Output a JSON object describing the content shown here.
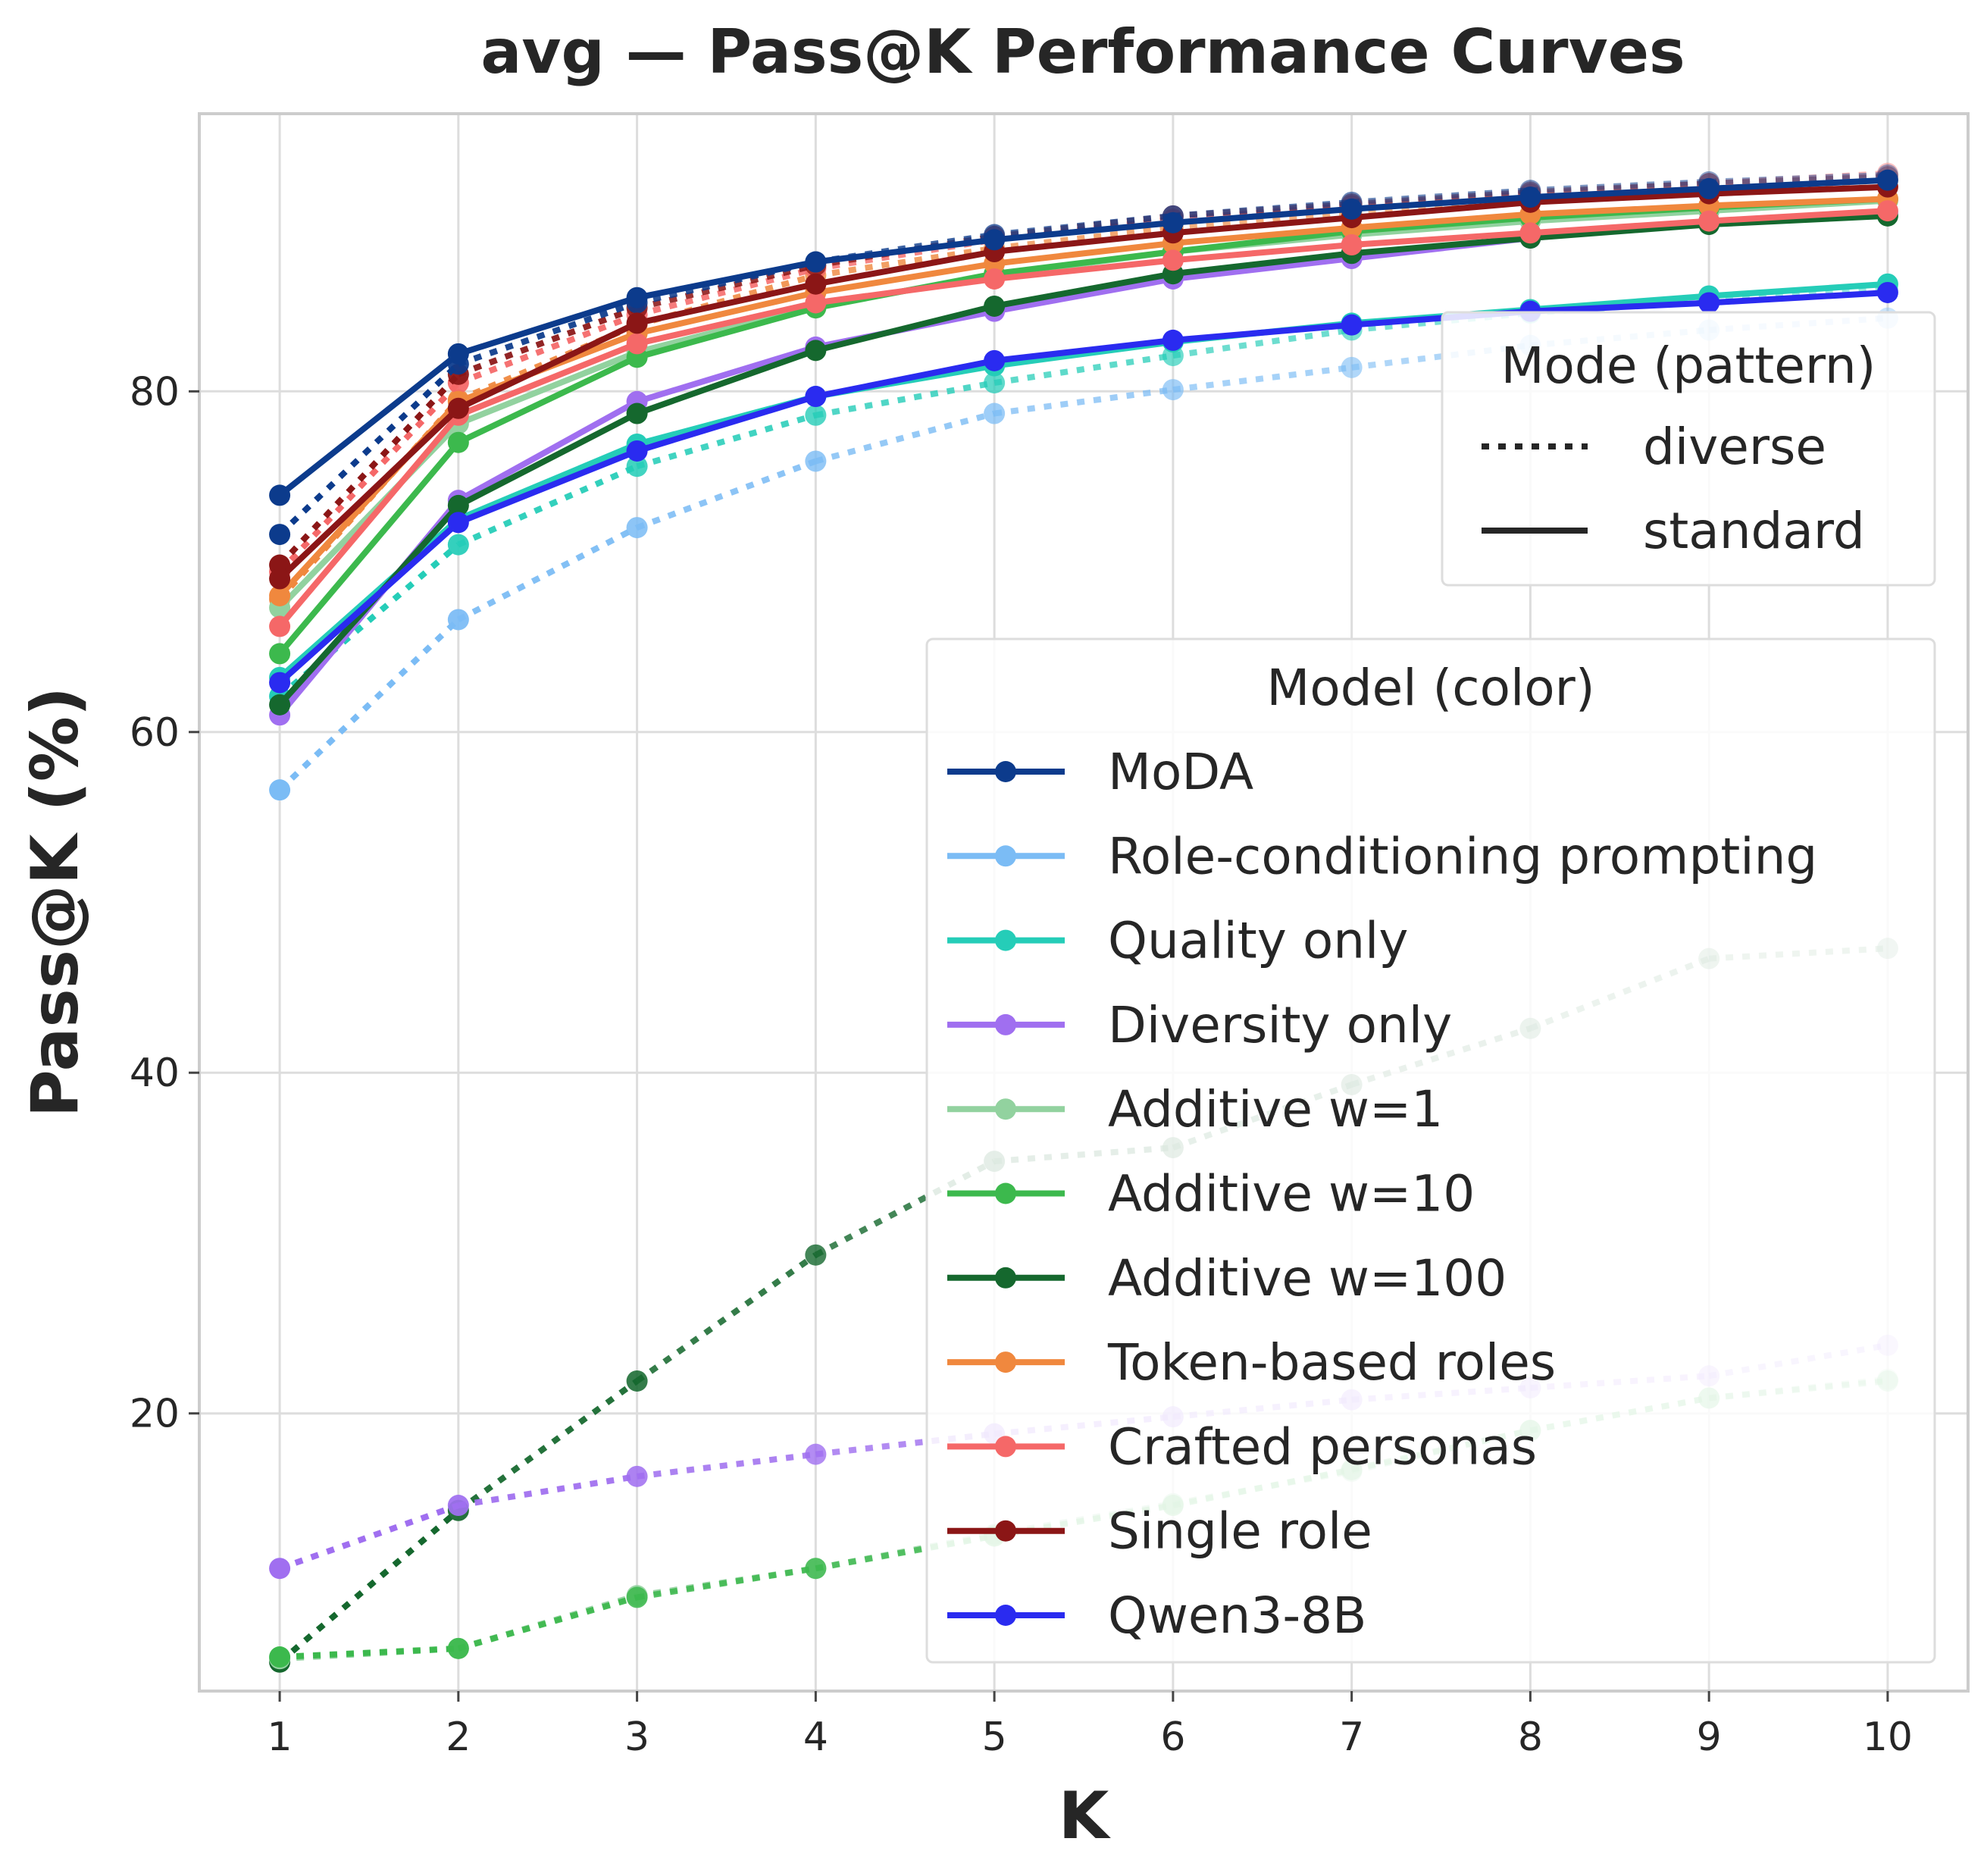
{
  "chart_data": {
    "type": "line",
    "title": "avg — Pass@K Performance Curves",
    "xlabel": "K",
    "ylabel": "Pass@K (%)",
    "x": [
      1,
      2,
      3,
      4,
      5,
      6,
      7,
      8,
      9,
      10
    ],
    "x_ticks": [
      "1",
      "2",
      "3",
      "4",
      "5",
      "6",
      "7",
      "8",
      "9",
      "10"
    ],
    "y_ticks": [
      "20",
      "40",
      "60",
      "80"
    ],
    "xlim": [
      0.55,
      10.45
    ],
    "ylim": [
      3.7,
      96.3
    ],
    "grid": true,
    "mode_legend": {
      "title": "Mode (pattern)",
      "placement": "top-right",
      "items": [
        {
          "label": "diverse",
          "dash": "dotted"
        },
        {
          "label": "standard",
          "dash": "solid"
        }
      ]
    },
    "model_legend": {
      "title": "Model (color)",
      "placement": "center-right",
      "items": [
        {
          "label": "MoDA",
          "color": "#0c3b8c"
        },
        {
          "label": "Role-conditioning prompting",
          "color": "#7bbcf5"
        },
        {
          "label": "Quality only",
          "color": "#25cdb8"
        },
        {
          "label": "Diversity only",
          "color": "#a06ff0"
        },
        {
          "label": "Additive w=1",
          "color": "#92d29f"
        },
        {
          "label": "Additive w=10",
          "color": "#3cb94d"
        },
        {
          "label": "Additive w=100",
          "color": "#15682e"
        },
        {
          "label": "Token-based roles",
          "color": "#f0883e"
        },
        {
          "label": "Crafted personas",
          "color": "#f56868"
        },
        {
          "label": "Single role",
          "color": "#8b1616"
        },
        {
          "label": "Qwen3-8B",
          "color": "#2a2bf0"
        }
      ]
    },
    "series": [
      {
        "model": "Additive w=100",
        "mode": "diverse",
        "color": "#15682e",
        "values": [
          5.4,
          14.3,
          21.9,
          29.3,
          34.8,
          35.6,
          39.3,
          42.6,
          46.7,
          47.3
        ],
        "fade": true
      },
      {
        "model": "Additive w=1",
        "mode": "diverse",
        "color": "#92d29f",
        "values": [
          5.6,
          6.2,
          9.3,
          10.9,
          12.9,
          14.7,
          16.6,
          19.0,
          20.9,
          22.0
        ],
        "fade": true
      },
      {
        "model": "Additive w=10",
        "mode": "diverse",
        "color": "#3cb94d",
        "values": [
          5.7,
          6.2,
          9.2,
          10.9,
          12.8,
          14.6,
          16.7,
          19.0,
          20.9,
          21.9
        ],
        "fade": true
      },
      {
        "model": "Diversity only",
        "mode": "diverse",
        "color": "#a06ff0",
        "values": [
          10.9,
          14.6,
          16.3,
          17.6,
          18.8,
          19.8,
          20.8,
          21.5,
          22.2,
          24.0
        ],
        "fade": true
      },
      {
        "model": "Role-conditioning prompting",
        "mode": "diverse",
        "color": "#7bbcf5",
        "values": [
          56.6,
          66.6,
          72.0,
          75.9,
          78.7,
          80.1,
          81.4,
          82.7,
          83.6,
          84.3
        ],
        "fade": true
      },
      {
        "model": "Quality only",
        "mode": "diverse",
        "color": "#25cdb8",
        "values": [
          62.1,
          71.0,
          75.6,
          78.6,
          80.5,
          82.1,
          83.6,
          84.6,
          85.3,
          86.0
        ],
        "fade": true
      },
      {
        "model": "Token-based roles",
        "mode": "diverse",
        "color": "#f0883e",
        "values": [
          67.8,
          79.5,
          83.9,
          86.8,
          88.4,
          89.6,
          90.5,
          91.2,
          91.8,
          92.4
        ],
        "fade": true
      },
      {
        "model": "Crafted personas",
        "mode": "diverse",
        "color": "#f56868",
        "values": [
          69.4,
          80.5,
          84.5,
          87.2,
          88.9,
          90.1,
          90.9,
          91.6,
          92.2,
          92.8
        ],
        "fade": true
      },
      {
        "model": "Single role",
        "mode": "diverse",
        "color": "#8b1616",
        "values": [
          69.8,
          81.0,
          84.9,
          87.4,
          89.1,
          90.3,
          91.0,
          91.7,
          92.2,
          92.6
        ],
        "fade": true
      },
      {
        "model": "MoDA",
        "mode": "diverse",
        "color": "#0c3b8c",
        "values": [
          71.6,
          81.6,
          85.2,
          87.6,
          89.2,
          90.3,
          91.1,
          91.8,
          92.3,
          92.7
        ],
        "fade": true
      },
      {
        "model": "Quality only",
        "mode": "standard",
        "color": "#25cdb8",
        "values": [
          63.2,
          72.5,
          76.9,
          79.7,
          81.5,
          82.9,
          84.0,
          84.8,
          85.6,
          86.3
        ]
      },
      {
        "model": "Diversity only",
        "mode": "standard",
        "color": "#a06ff0",
        "values": [
          61.0,
          73.6,
          79.4,
          82.6,
          84.7,
          86.6,
          87.8,
          89.0,
          89.9,
          90.5
        ]
      },
      {
        "model": "Additive w=1",
        "mode": "standard",
        "color": "#92d29f",
        "values": [
          67.3,
          78.1,
          82.3,
          85.0,
          86.8,
          88.2,
          89.2,
          90.0,
          90.6,
          91.2
        ]
      },
      {
        "model": "Additive w=10",
        "mode": "standard",
        "color": "#3cb94d",
        "values": [
          64.6,
          77.0,
          82.0,
          84.9,
          86.9,
          88.2,
          89.4,
          90.2,
          90.8,
          91.3
        ]
      },
      {
        "model": "Additive w=100",
        "mode": "standard",
        "color": "#15682e",
        "values": [
          61.6,
          73.3,
          78.7,
          82.4,
          85.0,
          86.9,
          88.1,
          89.0,
          89.8,
          90.3
        ]
      },
      {
        "model": "Token-based roles",
        "mode": "standard",
        "color": "#f0883e",
        "values": [
          68.0,
          79.4,
          83.4,
          85.8,
          87.5,
          88.7,
          89.6,
          90.4,
          90.9,
          91.3
        ]
      },
      {
        "model": "Crafted personas",
        "mode": "standard",
        "color": "#f56868",
        "values": [
          66.2,
          78.6,
          82.8,
          85.2,
          86.6,
          87.7,
          88.6,
          89.3,
          90.0,
          90.6
        ]
      },
      {
        "model": "Qwen3-8B",
        "mode": "standard",
        "color": "#2a2bf0",
        "values": [
          62.9,
          72.3,
          76.5,
          79.7,
          81.8,
          83.0,
          83.9,
          84.7,
          85.2,
          85.8
        ]
      },
      {
        "model": "Single role",
        "mode": "standard",
        "color": "#8b1616",
        "values": [
          69.0,
          79.0,
          84.0,
          86.3,
          88.2,
          89.3,
          90.2,
          91.1,
          91.6,
          92.0
        ]
      },
      {
        "model": "MoDA",
        "mode": "standard",
        "color": "#0c3b8c",
        "values": [
          73.9,
          82.2,
          85.5,
          87.6,
          88.9,
          89.9,
          90.7,
          91.4,
          91.9,
          92.4
        ]
      }
    ]
  }
}
